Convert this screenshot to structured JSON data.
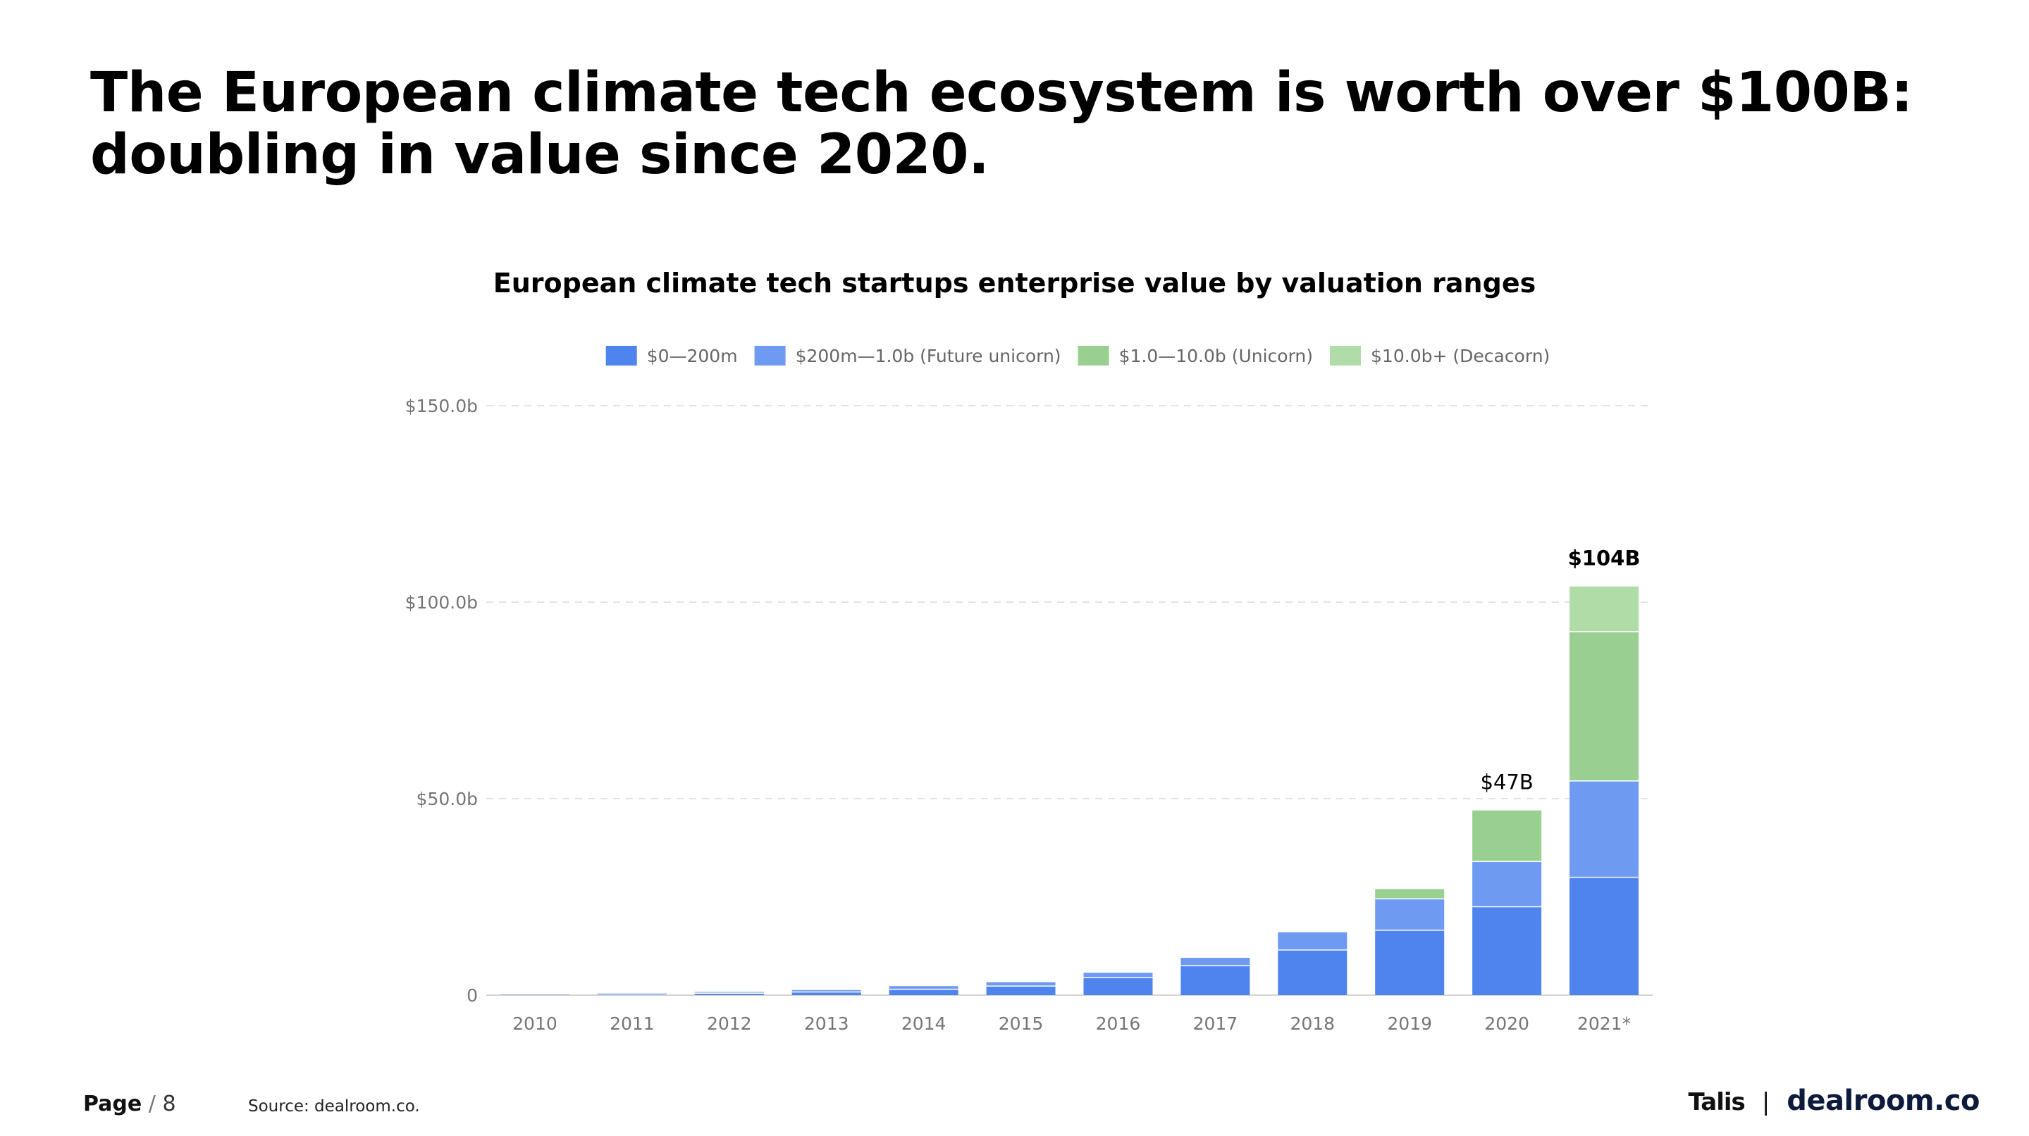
{
  "slide": {
    "title_line1": "The European climate tech ecosystem is worth over $100B:",
    "title_line2": "doubling in value since 2020."
  },
  "chart_data": {
    "type": "bar",
    "stacked": true,
    "title": "European climate tech startups enterprise value by valuation ranges",
    "xlabel": "",
    "ylabel": "",
    "categories": [
      "2010",
      "2011",
      "2012",
      "2013",
      "2014",
      "2015",
      "2016",
      "2017",
      "2018",
      "2019",
      "2020",
      "2021*"
    ],
    "series": [
      {
        "name": "$0—200m",
        "color": "#4f83ee",
        "values": [
          0.1,
          0.3,
          0.5,
          0.8,
          1.5,
          2.3,
          4.5,
          7.5,
          11.5,
          16.5,
          22.5,
          30.0
        ]
      },
      {
        "name": "$200m—1.0b (Future unicorn)",
        "color": "#6f9af2",
        "values": [
          0,
          0.2,
          0.3,
          0.5,
          0.8,
          1.0,
          1.2,
          2.0,
          4.5,
          8.0,
          11.5,
          24.5
        ]
      },
      {
        "name": "$1.0—10.0b (Unicorn)",
        "color": "#99cf91",
        "values": [
          0,
          0,
          0,
          0,
          0,
          0,
          0,
          0,
          0,
          2.5,
          13.0,
          38.0
        ]
      },
      {
        "name": "$10.0b+ (Decacorn)",
        "color": "#b0dca8",
        "values": [
          0,
          0,
          0,
          0,
          0,
          0,
          0,
          0,
          0,
          0,
          0,
          11.5
        ]
      }
    ],
    "totals": [
      {
        "category": "2020",
        "label": "$47B",
        "bold": false
      },
      {
        "category": "2021*",
        "label": "$104B",
        "bold": true
      }
    ],
    "yaxis": {
      "min": 0,
      "max": 150,
      "ticks": [
        0,
        50,
        100,
        150
      ],
      "tick_labels": [
        "0",
        "$50.0b",
        "$100.0b",
        "$150.0b"
      ]
    },
    "grid": true,
    "legend_position": "top-center"
  },
  "footer": {
    "page_word": "Page",
    "page_sep": " / ",
    "page_number": "8",
    "source": "Source: dealroom.co.",
    "logo_talis": "Talis",
    "logo_divider": "|",
    "logo_dealroom": "dealroom.co"
  }
}
